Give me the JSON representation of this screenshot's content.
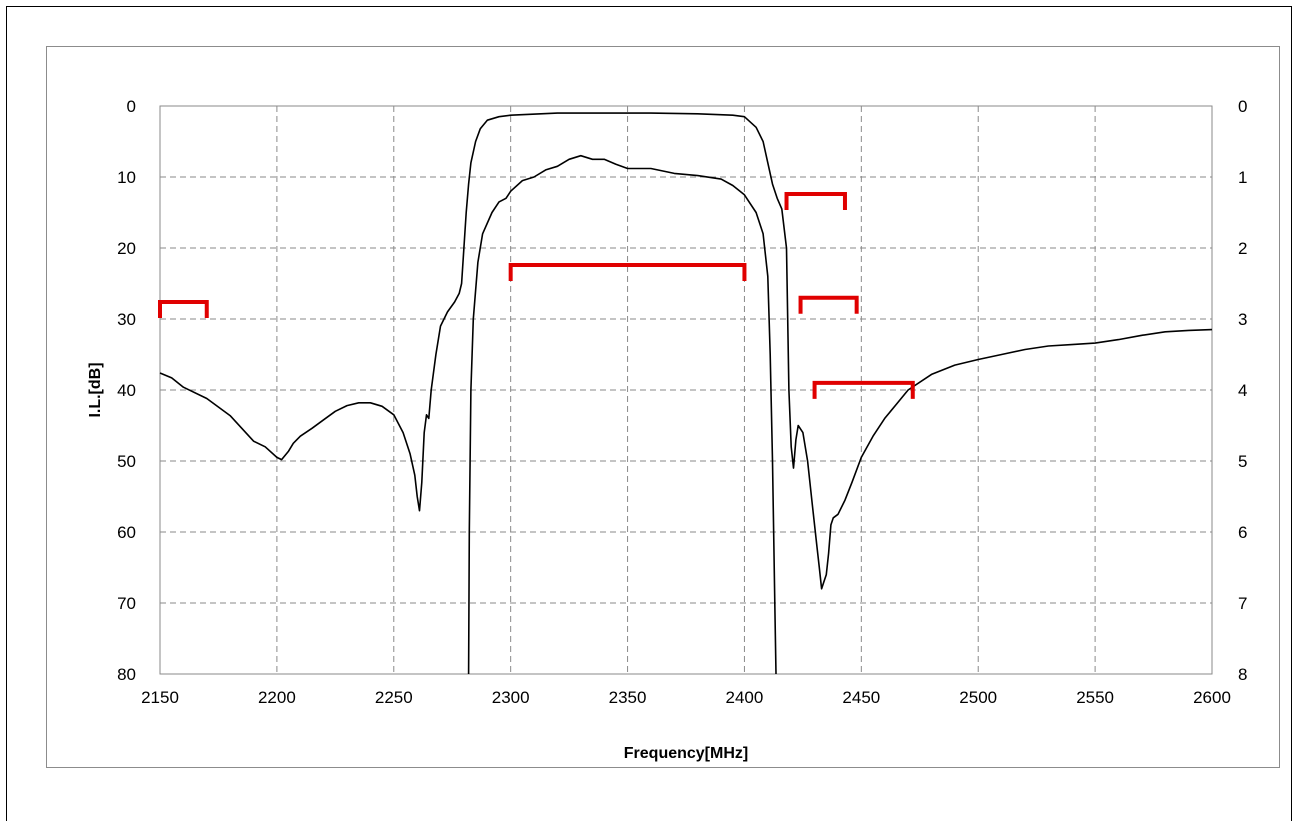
{
  "chart_data": {
    "type": "line",
    "title": "",
    "xlabel": "Frequency[MHz]",
    "ylabel": "I.L.[dB]",
    "x_ticks": [
      "2150",
      "2200",
      "2250",
      "2300",
      "2350",
      "2400",
      "2450",
      "2500",
      "2550",
      "2600"
    ],
    "y_left_ticks": [
      "0",
      "10",
      "20",
      "30",
      "40",
      "50",
      "60",
      "70",
      "80"
    ],
    "y_right_ticks": [
      "0",
      "1",
      "2",
      "3",
      "4",
      "5",
      "6",
      "7",
      "8"
    ],
    "xlim": [
      2150,
      2600
    ],
    "ylim_left": [
      0,
      80
    ],
    "ylim_right": [
      0,
      8
    ],
    "y_inverted": true,
    "grid": true,
    "series": [
      {
        "axis": "left",
        "color": "#000000",
        "points": [
          [
            2150,
            37.6
          ],
          [
            2155,
            38.3
          ],
          [
            2160,
            39.6
          ],
          [
            2170,
            41.2
          ],
          [
            2180,
            43.6
          ],
          [
            2190,
            47.2
          ],
          [
            2195,
            48
          ],
          [
            2200,
            49.5
          ],
          [
            2202,
            49.8
          ],
          [
            2205,
            48.6
          ],
          [
            2207,
            47.5
          ],
          [
            2210,
            46.5
          ],
          [
            2215,
            45.4
          ],
          [
            2220,
            44.2
          ],
          [
            2225,
            43
          ],
          [
            2230,
            42.2
          ],
          [
            2235,
            41.8
          ],
          [
            2240,
            41.8
          ],
          [
            2245,
            42.3
          ],
          [
            2250,
            43.5
          ],
          [
            2254,
            46
          ],
          [
            2257,
            49
          ],
          [
            2259,
            52
          ],
          [
            2260,
            55
          ],
          [
            2261,
            57
          ],
          [
            2262,
            53
          ],
          [
            2263,
            46
          ],
          [
            2264,
            43.5
          ],
          [
            2265,
            44
          ],
          [
            2266,
            40
          ],
          [
            2268,
            35
          ],
          [
            2270,
            31
          ],
          [
            2273,
            29
          ],
          [
            2276,
            27.6
          ],
          [
            2278,
            26.4
          ],
          [
            2279,
            25
          ],
          [
            2280,
            20
          ],
          [
            2281,
            15
          ],
          [
            2282,
            11
          ],
          [
            2283,
            8
          ],
          [
            2285,
            5
          ],
          [
            2287,
            3.2
          ],
          [
            2290,
            2
          ],
          [
            2295,
            1.5
          ],
          [
            2300,
            1.3
          ],
          [
            2320,
            1
          ],
          [
            2340,
            1
          ],
          [
            2360,
            1
          ],
          [
            2380,
            1.1
          ],
          [
            2395,
            1.3
          ],
          [
            2400,
            1.5
          ],
          [
            2405,
            3
          ],
          [
            2408,
            5
          ],
          [
            2410,
            8
          ],
          [
            2412,
            11
          ],
          [
            2414,
            13
          ],
          [
            2416,
            14.5
          ],
          [
            2418,
            20
          ],
          [
            2419,
            40
          ],
          [
            2420,
            48
          ],
          [
            2421,
            51
          ],
          [
            2422,
            47
          ],
          [
            2423,
            45
          ],
          [
            2425,
            46
          ],
          [
            2427,
            50
          ],
          [
            2429,
            56
          ],
          [
            2431,
            62
          ],
          [
            2432,
            65
          ],
          [
            2433,
            68
          ],
          [
            2434,
            67
          ],
          [
            2435,
            66
          ],
          [
            2436,
            63
          ],
          [
            2437,
            59
          ],
          [
            2438,
            58
          ],
          [
            2440,
            57.5
          ],
          [
            2443,
            55.5
          ],
          [
            2446,
            53
          ],
          [
            2450,
            49.5
          ],
          [
            2455,
            46.5
          ],
          [
            2460,
            44
          ],
          [
            2465,
            42
          ],
          [
            2470,
            40
          ],
          [
            2480,
            37.8
          ],
          [
            2490,
            36.5
          ],
          [
            2500,
            35.7
          ],
          [
            2510,
            35
          ],
          [
            2520,
            34.3
          ],
          [
            2530,
            33.8
          ],
          [
            2540,
            33.6
          ],
          [
            2550,
            33.4
          ],
          [
            2560,
            32.9
          ],
          [
            2570,
            32.3
          ],
          [
            2580,
            31.8
          ],
          [
            2590,
            31.6
          ],
          [
            2600,
            31.5
          ]
        ]
      },
      {
        "axis": "right",
        "color": "#000000",
        "points": [
          [
            2282,
            8
          ],
          [
            2282.3,
            6
          ],
          [
            2283,
            4
          ],
          [
            2284,
            3
          ],
          [
            2286,
            2.2
          ],
          [
            2288,
            1.8
          ],
          [
            2292,
            1.5
          ],
          [
            2295,
            1.35
          ],
          [
            2298,
            1.3
          ],
          [
            2300,
            1.2
          ],
          [
            2305,
            1.05
          ],
          [
            2310,
            1.0
          ],
          [
            2315,
            0.9
          ],
          [
            2320,
            0.85
          ],
          [
            2325,
            0.75
          ],
          [
            2330,
            0.7
          ],
          [
            2335,
            0.75
          ],
          [
            2340,
            0.75
          ],
          [
            2345,
            0.82
          ],
          [
            2350,
            0.88
          ],
          [
            2360,
            0.88
          ],
          [
            2370,
            0.95
          ],
          [
            2380,
            0.98
          ],
          [
            2390,
            1.03
          ],
          [
            2395,
            1.12
          ],
          [
            2400,
            1.25
          ],
          [
            2405,
            1.5
          ],
          [
            2408,
            1.8
          ],
          [
            2410,
            2.4
          ],
          [
            2411,
            3.5
          ],
          [
            2412,
            5
          ],
          [
            2413,
            7
          ],
          [
            2413.5,
            8
          ]
        ]
      }
    ],
    "spec_marks": [
      {
        "color": "#e00000",
        "x1": 2150,
        "x2": 2170,
        "y": 27.6
      },
      {
        "color": "#e00000",
        "x1": 2300,
        "x2": 2400,
        "y": 22.4
      },
      {
        "color": "#e00000",
        "x1": 2418,
        "x2": 2443,
        "y": 12.4
      },
      {
        "color": "#e00000",
        "x1": 2424,
        "x2": 2448,
        "y": 27.0
      },
      {
        "color": "#e00000",
        "x1": 2430,
        "x2": 2472,
        "y": 39.0
      }
    ]
  }
}
